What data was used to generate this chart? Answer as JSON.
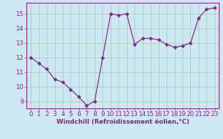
{
  "x": [
    0,
    1,
    2,
    3,
    4,
    5,
    6,
    7,
    8,
    9,
    10,
    11,
    12,
    13,
    14,
    15,
    16,
    17,
    18,
    19,
    20,
    21,
    22,
    23
  ],
  "y": [
    12.0,
    11.6,
    11.2,
    10.5,
    10.3,
    9.8,
    9.3,
    8.7,
    9.0,
    12.0,
    15.0,
    14.9,
    15.0,
    12.9,
    13.3,
    13.3,
    13.2,
    12.9,
    12.7,
    12.8,
    13.0,
    14.7,
    15.3,
    15.4
  ],
  "line_color": "#882288",
  "marker": "D",
  "marker_size": 2.5,
  "bg_color": "#cce8f0",
  "grid_color": "#aaccbb",
  "xlabel": "Windchill (Refroidissement éolien,°C)",
  "xlabel_fontsize": 6.5,
  "tick_fontsize": 6.5,
  "xlim": [
    -0.5,
    23.5
  ],
  "ylim": [
    8.5,
    15.75
  ],
  "yticks": [
    9,
    10,
    11,
    12,
    13,
    14,
    15
  ],
  "xticks": [
    0,
    1,
    2,
    3,
    4,
    5,
    6,
    7,
    8,
    9,
    10,
    11,
    12,
    13,
    14,
    15,
    16,
    17,
    18,
    19,
    20,
    21,
    22,
    23
  ]
}
